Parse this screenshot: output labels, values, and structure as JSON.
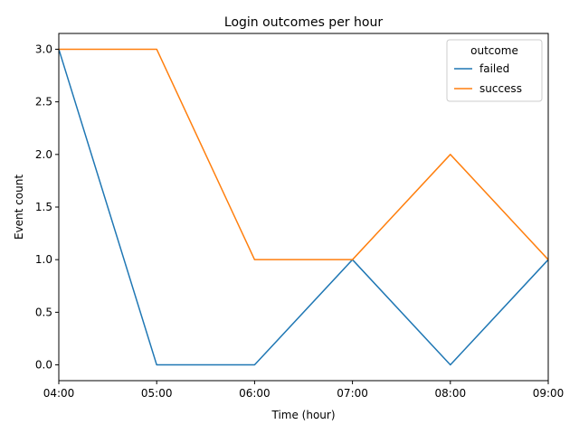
{
  "chart_data": {
    "type": "line",
    "title": "Login outcomes per hour",
    "xlabel": "Time (hour)",
    "ylabel": "Event count",
    "categories": [
      "04:00",
      "05:00",
      "06:00",
      "07:00",
      "08:00",
      "09:00"
    ],
    "ylim": [
      -0.15,
      3.15
    ],
    "yticks": [
      "0.0",
      "0.5",
      "1.0",
      "1.5",
      "2.0",
      "2.5",
      "3.0"
    ],
    "grid": false,
    "legend": {
      "title": "outcome",
      "placement": "top-right"
    },
    "series": [
      {
        "name": "failed",
        "color": "#1f77b4",
        "values": [
          3,
          0,
          0,
          1,
          0,
          1
        ]
      },
      {
        "name": "success",
        "color": "#ff7f0e",
        "values": [
          3,
          3,
          1,
          1,
          2,
          1
        ]
      }
    ]
  }
}
